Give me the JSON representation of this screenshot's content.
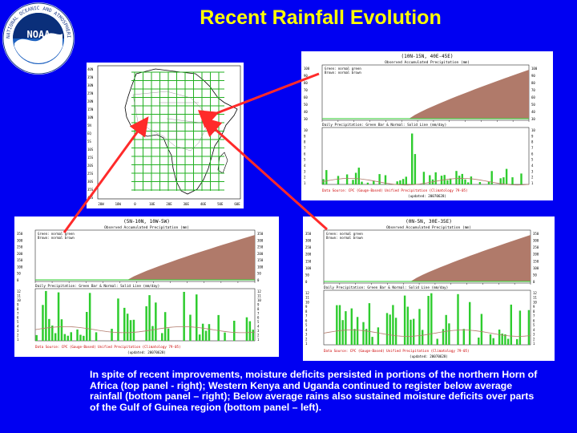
{
  "slide": {
    "title": "Recent Rainfall Evolution",
    "logo": {
      "icon": "noaa-logo-icon",
      "text": "NOAA",
      "ring_text": "NATIONAL OCEANIC AND ATMOSPHERIC ADMINISTRATION · U.S. DEPARTMENT OF COMMERCE"
    },
    "caption": "In spite of recent improvements, moisture deficits persisted in portions of the northern Horn of Africa (top panel - right); Western Kenya and Uganda continued to register below average rainfall (bottom panel – right); Below average rains also sustained moisture deficits over parts of the Gulf of Guinea region (bottom panel – left).",
    "colors": {
      "background": "#0000f2",
      "title": "#ffff00",
      "arrow": "#ff2a2a",
      "obs_green": "#2ecc2e",
      "normal_brown": "#b07a6a"
    }
  },
  "map": {
    "y_ticks": [
      "40N",
      "35N",
      "30N",
      "25N",
      "20N",
      "15N",
      "10N",
      "5N",
      "EQ",
      "5S",
      "10S",
      "15S",
      "20S",
      "25S",
      "30S",
      "35S",
      "40S"
    ],
    "x_ticks": [
      "20W",
      "10W",
      "0",
      "10E",
      "20E",
      "30E",
      "40E",
      "50E",
      "60E"
    ]
  },
  "panels": [
    {
      "id": "horn",
      "region": "(10N-15N, 40E-45E)",
      "top_title": "Observed Accumulated Precipitation (mm)",
      "legend1": "Green: normal green",
      "legend2": "Brown: normal brown",
      "top_yticks": [
        "100",
        "90",
        "80",
        "70",
        "60",
        "50",
        "40",
        "30"
      ],
      "bottom_title": "Daily Precipitation: Green Bar & Normal: Solid Line (mm/day)",
      "bottom_yticks": [
        "10",
        "9",
        "8",
        "7",
        "6",
        "5",
        "4",
        "3",
        "2",
        "1"
      ],
      "source": "Data Source: CPC (Gauge-Based) Unified Precipitation (Climatology 79-05)",
      "updated": "(updated: 20070628)"
    },
    {
      "id": "guinea",
      "region": "(5N-10N, 10W-5W)",
      "top_title": "Observed Accumulated Precipitation (mm)",
      "legend1": "Green: normal green",
      "legend2": "Brown: normal brown",
      "top_yticks": [
        "350",
        "300",
        "250",
        "200",
        "150",
        "100",
        "50",
        "0"
      ],
      "bottom_title": "Daily Precipitation: Green Bar & Normal: Solid Line (mm/day)",
      "bottom_yticks": [
        "12",
        "11",
        "10",
        "9",
        "8",
        "7",
        "6",
        "5",
        "4",
        "3",
        "2",
        "1"
      ],
      "source": "Data Source: CPC (Gauge-Based) Unified Precipitation (Climatology 79-05)",
      "updated": "(updated: 20070628)"
    },
    {
      "id": "kenya",
      "region": "(0N-5N, 30E-35E)",
      "top_title": "Observed Accumulated Precipitation (mm)",
      "legend1": "Green: normal green",
      "legend2": "Brown: normal brown",
      "top_yticks": [
        "350",
        "300",
        "250",
        "200",
        "150",
        "100",
        "50",
        "0"
      ],
      "bottom_title": "Daily Precipitation: Green Bar & Normal: Solid Line (mm/day)",
      "bottom_yticks": [
        "12",
        "11",
        "10",
        "9",
        "8",
        "7",
        "6",
        "5",
        "4",
        "3",
        "2",
        "1"
      ],
      "source": "Data Source: CPC (Gauge-Based) Unified Precipitation (Climatology 79-05)",
      "updated": "(updated: 20070628)"
    }
  ]
}
